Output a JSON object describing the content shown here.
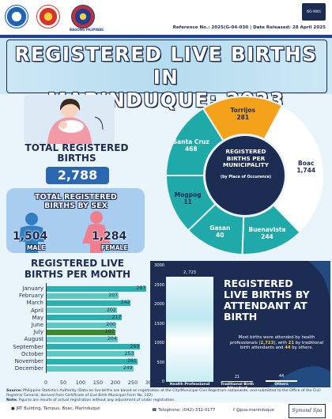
{
  "header": {
    "reference": "Reference No.: 2025(G-04-030 | Date Released: 28 April 2025",
    "bp_tag": "BAGONG PILIPINAS",
    "iso_text": "ISO 9001"
  },
  "title": {
    "line1": "REGISTERED LIVE BIRTHS IN",
    "line2": "MARINDUQUE: 2023"
  },
  "totals": {
    "label_line1": "TOTAL REGISTERED",
    "label_line2": "BIRTHS",
    "value": "2,788"
  },
  "by_sex": {
    "label_line1": "TOTAL REGISTERED",
    "label_line2": "BIRTHS BY SEX",
    "male_value": "1,504",
    "male_label": "MALE",
    "female_value": "1,284",
    "female_label": "FEMALE"
  },
  "municipality": {
    "center_line1": "REGISTERED",
    "center_line2": "BIRTHS PER",
    "center_line3": "MUNICIPALITY",
    "center_sub": "(by Place of Occurence)",
    "segments": [
      {
        "name": "Boac",
        "value": "1,744"
      },
      {
        "name": "Buenavista",
        "value": "244"
      },
      {
        "name": "Gasan",
        "value": "40"
      },
      {
        "name": "Mogpog",
        "value": "11"
      },
      {
        "name": "Santa Cruz",
        "value": "468"
      },
      {
        "name": "Torrijos",
        "value": "281"
      }
    ]
  },
  "monthly": {
    "title_line1": "REGISTERED LIVE",
    "title_line2": "BIRTHS PER MONTH"
  },
  "attendant": {
    "title_line1": "REGISTERED",
    "title_line2": "LIVE BIRTHS BY",
    "title_line3": "ATTENDANT AT",
    "title_line4": "BIRTH",
    "note_a": "Most births were attended by health professionals (",
    "note_b": "2,723",
    "note_c": "), with ",
    "note_d": "21",
    "note_e": " by traditional birth attendants and ",
    "note_f": "44",
    "note_g": " by others."
  },
  "footer": {
    "source_label": "Source:",
    "source_text": " Philippine Statistics Authority (Data on live births are based on registration at the City/Municipal Civil Registrars nationwide, and submitted to the Office of the Civil Registrar General; derived from Certificate of Live Birth-Municipal Form No. 102)",
    "note_label": "Note:",
    "note_text": " Figures are results of actual registration without any adjustment of under registration.",
    "address": "JRT Building, Tampus, Boac, Marinduque",
    "phone": "Telephone: (042)-332-0177",
    "facebook": "@psa.marinduque",
    "signature": "Symond Spa"
  },
  "colors": {
    "navy": "#1d2c53",
    "accent_blue": "#2b67b1",
    "orange": "#f5a21b",
    "teal": "#1fa9a8",
    "light_blue": "#a9cdee",
    "july_bar": "#3b8a2c"
  },
  "chart_data": [
    {
      "type": "pie",
      "title": "REGISTERED BIRTHS PER MUNICIPALITY (by Place of Occurence)",
      "categories": [
        "Boac",
        "Buenavista",
        "Gasan",
        "Mogpog",
        "Santa Cruz",
        "Torrijos"
      ],
      "values": [
        1744,
        244,
        40,
        11,
        468,
        281
      ]
    },
    {
      "type": "bar",
      "orientation": "horizontal",
      "title": "REGISTERED LIVE BIRTHS PER MONTH",
      "categories": [
        "January",
        "February",
        "March",
        "April",
        "May",
        "June",
        "July",
        "August",
        "September",
        "October",
        "November",
        "December"
      ],
      "values": [
        287,
        207,
        242,
        202,
        217,
        200,
        197,
        204,
        269,
        253,
        261,
        249
      ],
      "xlim": [
        0,
        300
      ],
      "xticks": [
        "0",
        "50",
        "100",
        "150",
        "200",
        "250",
        "300"
      ]
    },
    {
      "type": "bar",
      "title": "REGISTERED LIVE BIRTHS BY ATTENDANT AT BIRTH",
      "categories": [
        "Health Professional",
        "Traditional Birth Attendant",
        "Others"
      ],
      "values": [
        2723,
        21,
        44
      ],
      "value_labels": [
        "2, 723",
        "21",
        "44"
      ],
      "ylim": [
        0,
        3000
      ],
      "yticks": [
        "3000",
        "2500",
        "2000",
        "1500",
        "1000",
        "500",
        "0"
      ]
    }
  ]
}
